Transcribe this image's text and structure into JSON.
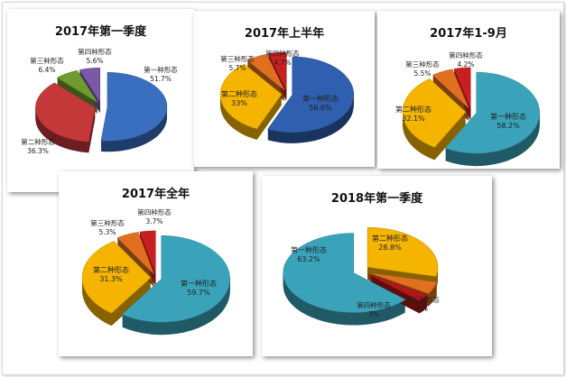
{
  "chart_data": [
    {
      "type": "pie",
      "title": "2017年第一季度",
      "categories": [
        "第一种形态",
        "第二种形态",
        "第三种形态",
        "第四种形态"
      ],
      "values": [
        51.7,
        36.3,
        6.4,
        5.6
      ],
      "value_labels": [
        "51.7%",
        "36.3%",
        "6.4%",
        "5.6%"
      ],
      "colors": [
        "#3a6fc0",
        "#c4383a",
        "#6f9a2e",
        "#7b58a8"
      ]
    },
    {
      "type": "pie",
      "title": "2017年上半年",
      "categories": [
        "第一种形态",
        "第二种形态",
        "第三种形态",
        "第四种形态"
      ],
      "values": [
        56.6,
        33,
        5.7,
        4.7
      ],
      "value_labels": [
        "56.6%",
        "33%",
        "5.7%",
        "4.7%"
      ],
      "colors": [
        "#2f5fae",
        "#f4b400",
        "#e07020",
        "#c82020"
      ]
    },
    {
      "type": "pie",
      "title": "2017年1-9月",
      "categories": [
        "第一种形态",
        "第二种形态",
        "第三种形态",
        "第四种形态"
      ],
      "values": [
        58.2,
        32.1,
        5.5,
        4.2
      ],
      "value_labels": [
        "58.2%",
        "32.1%",
        "5.5%",
        "4.2%"
      ],
      "colors": [
        "#3aa3ba",
        "#f4b400",
        "#e07020",
        "#c82020"
      ]
    },
    {
      "type": "pie",
      "title": "2017年全年",
      "categories": [
        "第一种形态",
        "第二种形态",
        "第三种形态",
        "第四种形态"
      ],
      "values": [
        59.7,
        31.3,
        5.3,
        3.7
      ],
      "value_labels": [
        "59.7%",
        "31.3%",
        "5.3%",
        "3.7%"
      ],
      "colors": [
        "#3aa3ba",
        "#f4b400",
        "#e07020",
        "#c82020"
      ]
    },
    {
      "type": "pie",
      "title": "2018年第一季度",
      "categories": [
        "第一种形态",
        "第二种形态",
        "第三种形态",
        "第四种形态"
      ],
      "values": [
        63.2,
        28.8,
        5,
        3
      ],
      "value_labels": [
        "63.2%",
        "28.8%",
        "5%",
        "3%"
      ],
      "colors": [
        "#3aa3ba",
        "#f4b400",
        "#e07020",
        "#b01818"
      ]
    }
  ]
}
